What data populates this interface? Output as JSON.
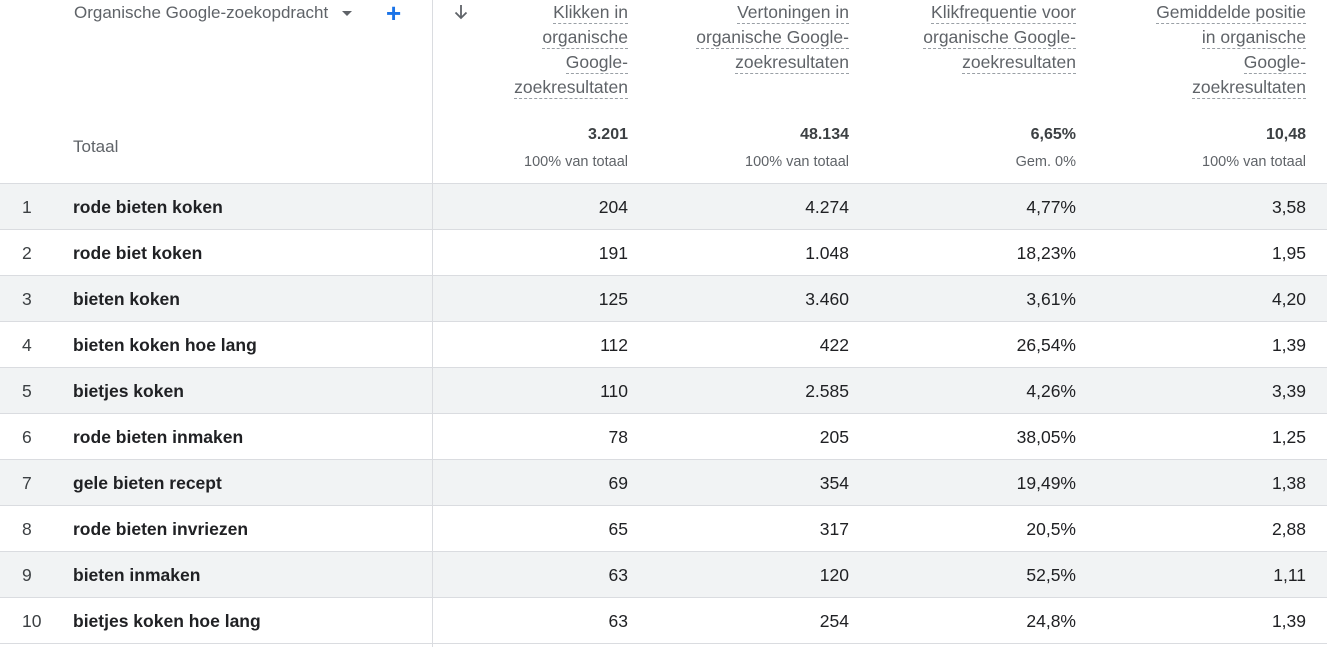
{
  "header": {
    "dimension_label": "Organische Google-zoekopdracht",
    "columns": [
      {
        "lines": [
          "Klikken in",
          "organische",
          "Google-",
          "zoekresultaten"
        ]
      },
      {
        "lines": [
          "Vertoningen in",
          "organische Google-",
          "zoekresultaten"
        ]
      },
      {
        "lines": [
          "Klikfrequentie voor",
          "organische Google-",
          "zoekresultaten"
        ]
      },
      {
        "lines": [
          "Gemiddelde positie",
          "in organische",
          "Google-",
          "zoekresultaten"
        ]
      }
    ]
  },
  "totals": {
    "label": "Totaal",
    "values": [
      "3.201",
      "48.134",
      "6,65%",
      "10,48"
    ],
    "subs": [
      "100% van totaal",
      "100% van totaal",
      "Gem. 0%",
      "100% van totaal"
    ]
  },
  "rows": [
    {
      "index": "1",
      "query": "rode bieten koken",
      "clicks": "204",
      "impressions": "4.274",
      "ctr": "4,77%",
      "position": "3,58"
    },
    {
      "index": "2",
      "query": "rode biet koken",
      "clicks": "191",
      "impressions": "1.048",
      "ctr": "18,23%",
      "position": "1,95"
    },
    {
      "index": "3",
      "query": "bieten koken",
      "clicks": "125",
      "impressions": "3.460",
      "ctr": "3,61%",
      "position": "4,20"
    },
    {
      "index": "4",
      "query": "bieten koken hoe lang",
      "clicks": "112",
      "impressions": "422",
      "ctr": "26,54%",
      "position": "1,39"
    },
    {
      "index": "5",
      "query": "bietjes koken",
      "clicks": "110",
      "impressions": "2.585",
      "ctr": "4,26%",
      "position": "3,39"
    },
    {
      "index": "6",
      "query": "rode bieten inmaken",
      "clicks": "78",
      "impressions": "205",
      "ctr": "38,05%",
      "position": "1,25"
    },
    {
      "index": "7",
      "query": "gele bieten recept",
      "clicks": "69",
      "impressions": "354",
      "ctr": "19,49%",
      "position": "1,38"
    },
    {
      "index": "8",
      "query": "rode bieten invriezen",
      "clicks": "65",
      "impressions": "317",
      "ctr": "20,5%",
      "position": "2,88"
    },
    {
      "index": "9",
      "query": "bieten inmaken",
      "clicks": "63",
      "impressions": "120",
      "ctr": "52,5%",
      "position": "1,11"
    },
    {
      "index": "10",
      "query": "bietjes koken hoe lang",
      "clicks": "63",
      "impressions": "254",
      "ctr": "24,8%",
      "position": "1,39"
    }
  ],
  "icons": {
    "dropdown": "caret-down-icon",
    "add": "plus-icon",
    "sort": "arrow-down-icon"
  },
  "colors": {
    "accent": "#1a73e8",
    "row_stripe": "#f1f3f4",
    "divider": "#dadce0"
  }
}
